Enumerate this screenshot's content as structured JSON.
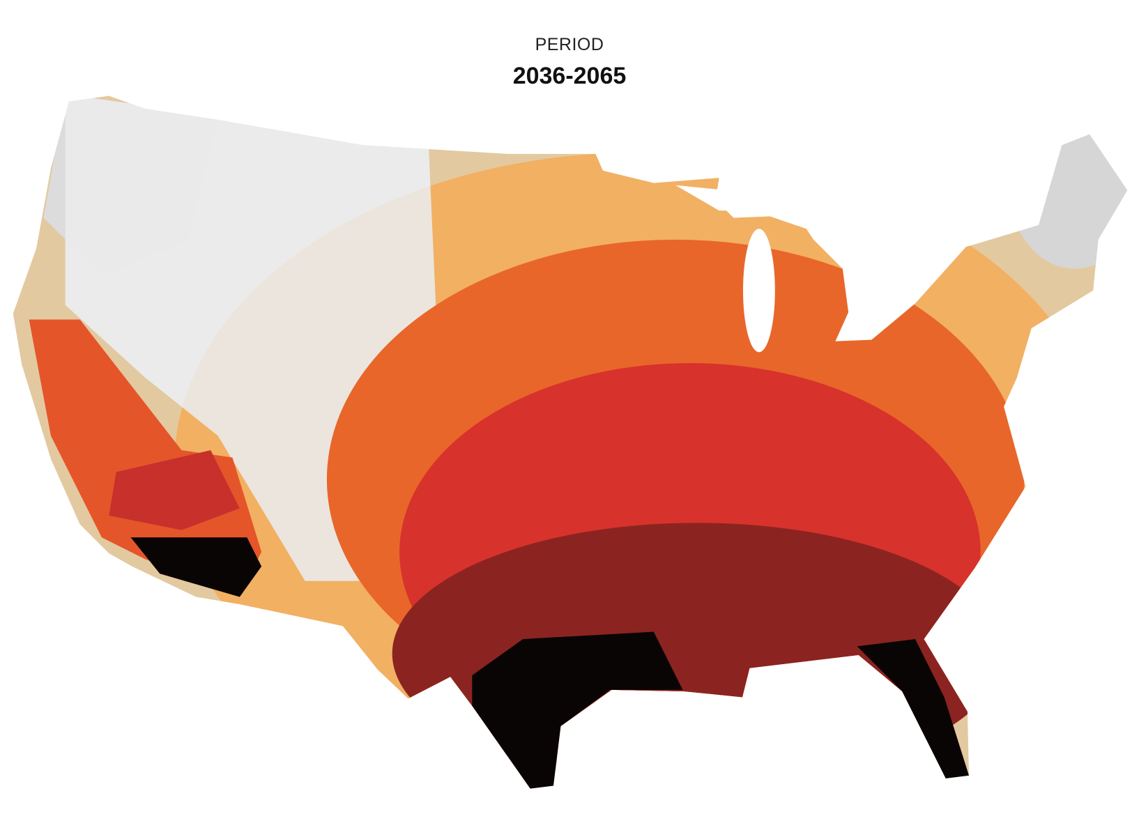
{
  "header": {
    "label": "PERIOD",
    "period": "2036-2065"
  }
}
